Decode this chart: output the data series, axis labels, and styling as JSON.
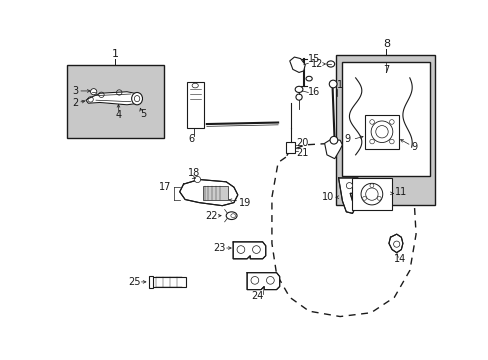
{
  "bg_color": "#ffffff",
  "fig_width": 4.89,
  "fig_height": 3.6,
  "dpi": 100,
  "dark": "#1a1a1a",
  "gray": "#c8c8c8",
  "gray_light": "#e0e0e0"
}
